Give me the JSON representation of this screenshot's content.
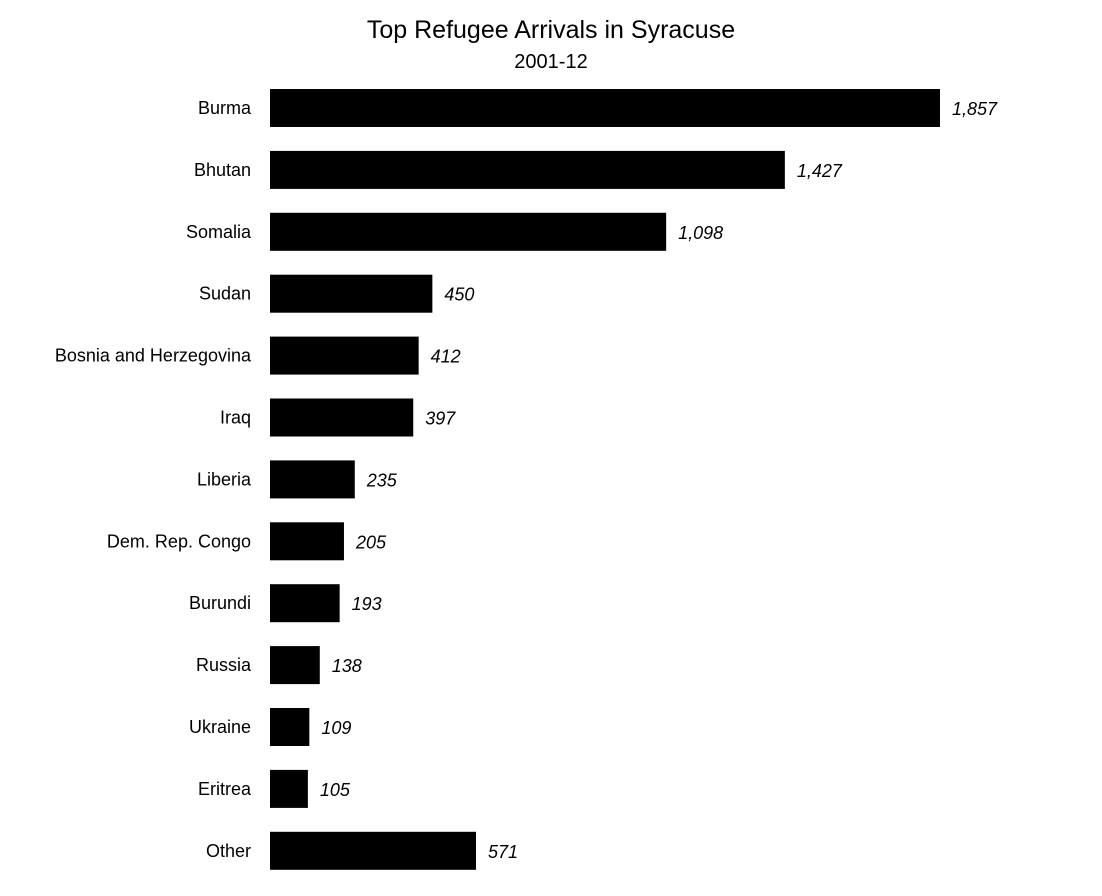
{
  "chart_data": {
    "type": "bar",
    "orientation": "horizontal",
    "title": "Top Refugee Arrivals in Syracuse",
    "subtitle": "2001-12",
    "categories": [
      "Burma",
      "Bhutan",
      "Somalia",
      "Sudan",
      "Bosnia and Herzegovina",
      "Iraq",
      "Liberia",
      "Dem. Rep. Congo",
      "Burundi",
      "Russia",
      "Ukraine",
      "Eritrea",
      "Other"
    ],
    "values": [
      1857,
      1427,
      1098,
      450,
      412,
      397,
      235,
      205,
      193,
      138,
      109,
      105,
      571
    ],
    "value_labels": [
      "1,857",
      "1,427",
      "1,098",
      "450",
      "412",
      "397",
      "235",
      "205",
      "193",
      "138",
      "109",
      "105",
      "571"
    ],
    "xlim": [
      0,
      1857
    ],
    "grid": false,
    "bar_color": "#000000"
  }
}
